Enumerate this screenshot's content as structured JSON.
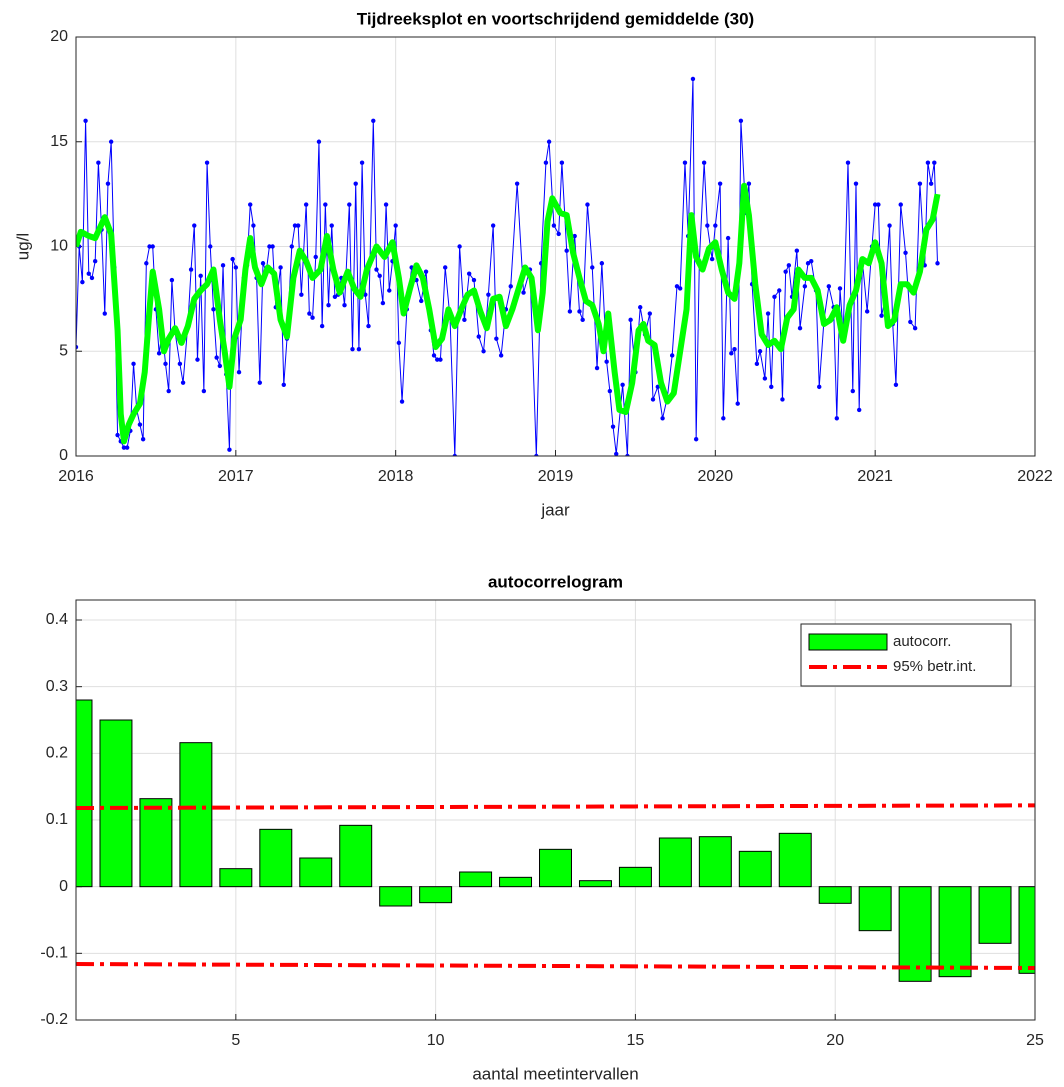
{
  "chart_data": [
    {
      "type": "line",
      "title": "Tijdreeksplot en voortschrijdend gemiddelde (30)",
      "xlabel": "jaar",
      "ylabel": "ug/l",
      "xlim": [
        2016,
        2022
      ],
      "xticks": [
        2016,
        2017,
        2018,
        2019,
        2020,
        2021,
        2022
      ],
      "ylim": [
        0,
        20
      ],
      "yticks": [
        0,
        5,
        10,
        15,
        20
      ],
      "grid": true,
      "series": [
        {
          "color": "#0000ff",
          "marker": true,
          "linewidth": 1,
          "x": [
            2016.0,
            2016.02,
            2016.04,
            2016.06,
            2016.08,
            2016.1,
            2016.12,
            2016.14,
            2016.16,
            2016.18,
            2016.2,
            2016.22,
            2016.24,
            2016.26,
            2016.28,
            2016.3,
            2016.32,
            2016.34,
            2016.36,
            2016.38,
            2016.4,
            2016.42,
            2016.44,
            2016.46,
            2016.48,
            2016.5,
            2016.52,
            2016.54,
            2016.56,
            2016.58,
            2016.6,
            2016.62,
            2016.65,
            2016.67,
            2016.7,
            2016.72,
            2016.74,
            2016.76,
            2016.78,
            2016.8,
            2016.82,
            2016.84,
            2016.86,
            2016.88,
            2016.9,
            2016.92,
            2016.94,
            2016.96,
            2016.98,
            2017.0,
            2017.02,
            2017.05,
            2017.07,
            2017.09,
            2017.11,
            2017.13,
            2017.15,
            2017.17,
            2017.19,
            2017.21,
            2017.23,
            2017.25,
            2017.28,
            2017.3,
            2017.32,
            2017.35,
            2017.37,
            2017.39,
            2017.41,
            2017.44,
            2017.46,
            2017.48,
            2017.5,
            2017.52,
            2017.54,
            2017.56,
            2017.58,
            2017.6,
            2017.62,
            2017.64,
            2017.66,
            2017.68,
            2017.71,
            2017.73,
            2017.75,
            2017.77,
            2017.79,
            2017.81,
            2017.83,
            2017.86,
            2017.88,
            2017.9,
            2017.92,
            2017.94,
            2017.96,
            2017.98,
            2018.0,
            2018.02,
            2018.04,
            2018.07,
            2018.1,
            2018.13,
            2018.16,
            2018.19,
            2018.22,
            2018.24,
            2018.26,
            2018.28,
            2018.31,
            2018.34,
            2018.37,
            2018.4,
            2018.43,
            2018.46,
            2018.49,
            2018.52,
            2018.55,
            2018.58,
            2018.61,
            2018.63,
            2018.66,
            2018.69,
            2018.72,
            2018.76,
            2018.8,
            2018.84,
            2018.88,
            2018.91,
            2018.94,
            2018.96,
            2018.99,
            2019.02,
            2019.04,
            2019.07,
            2019.09,
            2019.12,
            2019.15,
            2019.17,
            2019.2,
            2019.23,
            2019.26,
            2019.29,
            2019.32,
            2019.34,
            2019.36,
            2019.38,
            2019.42,
            2019.45,
            2019.47,
            2019.5,
            2019.53,
            2019.56,
            2019.59,
            2019.61,
            2019.64,
            2019.67,
            2019.7,
            2019.73,
            2019.76,
            2019.78,
            2019.81,
            2019.83,
            2019.86,
            2019.88,
            2019.9,
            2019.93,
            2019.95,
            2019.98,
            2020.0,
            2020.03,
            2020.05,
            2020.08,
            2020.1,
            2020.12,
            2020.14,
            2020.16,
            2020.19,
            2020.21,
            2020.23,
            2020.26,
            2020.28,
            2020.31,
            2020.33,
            2020.35,
            2020.37,
            2020.4,
            2020.42,
            2020.44,
            2020.46,
            2020.48,
            2020.51,
            2020.53,
            2020.56,
            2020.58,
            2020.6,
            2020.63,
            2020.65,
            2020.68,
            2020.71,
            2020.74,
            2020.76,
            2020.78,
            2020.8,
            2020.83,
            2020.86,
            2020.88,
            2020.9,
            2020.92,
            2020.95,
            2020.98,
            2021.0,
            2021.02,
            2021.04,
            2021.06,
            2021.09,
            2021.11,
            2021.13,
            2021.16,
            2021.19,
            2021.22,
            2021.25,
            2021.28,
            2021.31,
            2021.33,
            2021.35,
            2021.37,
            2021.39
          ],
          "values": [
            5.2,
            10,
            8.3,
            16,
            8.7,
            8.5,
            9.3,
            14,
            10.8,
            6.8,
            13,
            15,
            9,
            1,
            0.7,
            0.4,
            0.4,
            1.2,
            4.4,
            2.2,
            1.5,
            0.8,
            9.2,
            10,
            10,
            7,
            4.9,
            6,
            4.4,
            3.1,
            8.4,
            5.9,
            4.4,
            3.5,
            6.3,
            8.9,
            11,
            4.6,
            8.6,
            3.1,
            14,
            10,
            7,
            4.7,
            4.3,
            9.1,
            3.9,
            0.3,
            9.4,
            9,
            4,
            8.5,
            9.1,
            12,
            11,
            8.5,
            3.5,
            9.2,
            8.8,
            10,
            10,
            7.1,
            9,
            3.4,
            5.6,
            10,
            11,
            11,
            7.7,
            12,
            6.8,
            6.6,
            9.5,
            15,
            6.2,
            12,
            7.2,
            11,
            7.6,
            7.7,
            8.5,
            7.2,
            12,
            5.1,
            13,
            5.1,
            14,
            7.7,
            6.2,
            16,
            8.9,
            8.6,
            7.3,
            12,
            7.9,
            9.3,
            11,
            5.4,
            2.6,
            7,
            9,
            8.4,
            7.4,
            8.8,
            6,
            4.8,
            4.6,
            4.6,
            9,
            6.6,
            0,
            10,
            6.5,
            8.7,
            8.4,
            5.7,
            5,
            7.7,
            11,
            5.6,
            4.8,
            7,
            8.1,
            13,
            7.8,
            8.9,
            0,
            9.2,
            14,
            15,
            11,
            10.6,
            14,
            9.8,
            6.9,
            10.5,
            6.9,
            6.5,
            12,
            9,
            4.2,
            9.2,
            4.5,
            3.1,
            1.4,
            0.1,
            3.4,
            0,
            6.5,
            4,
            7.1,
            5.8,
            6.8,
            2.7,
            3.3,
            1.8,
            2.8,
            4.8,
            8.1,
            8,
            14,
            10.5,
            18,
            0.8,
            9.3,
            14,
            11,
            9.4,
            11,
            13,
            1.8,
            10.4,
            4.9,
            5.1,
            2.5,
            16,
            11.6,
            13,
            8.2,
            4.4,
            5,
            3.7,
            6.8,
            3.3,
            7.6,
            7.9,
            2.7,
            8.8,
            9.1,
            7.6,
            9.8,
            6.1,
            8.1,
            9.2,
            9.3,
            7.9,
            3.3,
            6.5,
            8.1,
            7.1,
            1.8,
            8,
            5.8,
            14,
            3.1,
            13,
            2.2,
            9.3,
            6.9,
            10,
            12,
            12,
            6.7,
            7.4,
            11,
            6.3,
            3.4,
            12,
            9.7,
            6.4,
            6.1,
            13,
            9.1,
            14,
            13,
            14,
            9.2
          ]
        },
        {
          "color": "#00ff00",
          "marker": false,
          "linewidth": 6,
          "x": [
            2016.0,
            2016.03,
            2016.08,
            2016.12,
            2016.18,
            2016.22,
            2016.26,
            2016.28,
            2016.3,
            2016.33,
            2016.36,
            2016.4,
            2016.43,
            2016.46,
            2016.48,
            2016.52,
            2016.55,
            2016.58,
            2016.62,
            2016.66,
            2016.7,
            2016.74,
            2016.78,
            2016.82,
            2016.86,
            2016.9,
            2016.93,
            2016.96,
            2016.99,
            2017.03,
            2017.06,
            2017.09,
            2017.12,
            2017.16,
            2017.2,
            2017.24,
            2017.28,
            2017.32,
            2017.36,
            2017.4,
            2017.44,
            2017.48,
            2017.53,
            2017.57,
            2017.61,
            2017.65,
            2017.7,
            2017.74,
            2017.78,
            2017.82,
            2017.88,
            2017.93,
            2017.98,
            2018.02,
            2018.05,
            2018.09,
            2018.13,
            2018.17,
            2018.21,
            2018.25,
            2018.29,
            2018.33,
            2018.37,
            2018.41,
            2018.45,
            2018.49,
            2018.53,
            2018.57,
            2018.61,
            2018.65,
            2018.69,
            2018.73,
            2018.77,
            2018.81,
            2018.85,
            2018.89,
            2018.92,
            2018.95,
            2018.98,
            2019.03,
            2019.07,
            2019.11,
            2019.15,
            2019.19,
            2019.23,
            2019.27,
            2019.3,
            2019.33,
            2019.37,
            2019.4,
            2019.44,
            2019.48,
            2019.52,
            2019.55,
            2019.58,
            2019.62,
            2019.66,
            2019.7,
            2019.74,
            2019.78,
            2019.82,
            2019.85,
            2019.88,
            2019.92,
            2019.96,
            2020.0,
            2020.04,
            2020.08,
            2020.12,
            2020.15,
            2020.18,
            2020.21,
            2020.25,
            2020.29,
            2020.33,
            2020.37,
            2020.41,
            2020.45,
            2020.49,
            2020.52,
            2020.56,
            2020.6,
            2020.64,
            2020.68,
            2020.72,
            2020.76,
            2020.8,
            2020.84,
            2020.88,
            2020.92,
            2020.96,
            2021.0,
            2021.04,
            2021.08,
            2021.12,
            2021.16,
            2021.2,
            2021.24,
            2021.28,
            2021.32,
            2021.36,
            2021.39
          ],
          "values": [
            10,
            10.7,
            10.5,
            10.4,
            11.4,
            10.6,
            6,
            2,
            0.7,
            1.5,
            2,
            2.5,
            4,
            7,
            8.8,
            7,
            5,
            5.6,
            6.1,
            5.4,
            6.2,
            7.5,
            7.9,
            8.2,
            8.9,
            6.5,
            5,
            3.3,
            5.6,
            6.5,
            8.9,
            10.4,
            9,
            8.2,
            9,
            8.7,
            6.5,
            5.7,
            8.5,
            9.8,
            9.3,
            8.5,
            8.9,
            10.5,
            8.9,
            7.8,
            8.8,
            8,
            7.6,
            8.9,
            10,
            9.5,
            10.2,
            8.5,
            6.8,
            8,
            9.1,
            8.5,
            7,
            5.2,
            5.6,
            7,
            6.2,
            7,
            7.7,
            7.9,
            6.9,
            6.1,
            7.5,
            7.6,
            6.2,
            7,
            8,
            9,
            8.5,
            6,
            7.8,
            11.2,
            12.3,
            11.6,
            11.5,
            9.7,
            8.5,
            7.4,
            7.2,
            6.3,
            5,
            6.8,
            4,
            2.2,
            2.1,
            3.5,
            6,
            6.3,
            5.5,
            5.3,
            3.5,
            2.6,
            3,
            5,
            7,
            11.5,
            9.5,
            8.9,
            9.9,
            10.2,
            8.9,
            7.8,
            7.5,
            9.2,
            12.9,
            11.5,
            8.2,
            5.8,
            5.3,
            5.5,
            5.1,
            6.6,
            7,
            8.9,
            8.5,
            8.5,
            7.9,
            6.3,
            6.5,
            7.1,
            5.5,
            7.2,
            7.9,
            9.4,
            9.2,
            10.2,
            9.2,
            6.2,
            6.5,
            8.2,
            8.2,
            7.8,
            8.8,
            10.8,
            11.3,
            12.5
          ]
        }
      ]
    },
    {
      "type": "bar",
      "title": "autocorrelogram",
      "xlabel": "aantal meetintervallen",
      "xlim": [
        1,
        25
      ],
      "xticks": [
        5,
        10,
        15,
        20,
        25
      ],
      "ylim": [
        -0.2,
        0.43
      ],
      "yticks": [
        -0.2,
        -0.1,
        0,
        0.1,
        0.2,
        0.3,
        0.4
      ],
      "grid": true,
      "legend": "northeast",
      "series": [
        {
          "name": "autocorr.",
          "type": "bar",
          "color": "#00ff00",
          "x": [
            1,
            2,
            3,
            4,
            5,
            6,
            7,
            8,
            9,
            10,
            11,
            12,
            13,
            14,
            15,
            16,
            17,
            18,
            19,
            20,
            21,
            22,
            23,
            24,
            25
          ],
          "values": [
            0.28,
            0.25,
            0.132,
            0.216,
            0.027,
            0.086,
            0.043,
            0.092,
            -0.029,
            -0.024,
            0.022,
            0.014,
            0.056,
            0.009,
            0.029,
            0.073,
            0.075,
            0.053,
            0.08,
            -0.025,
            -0.066,
            -0.142,
            -0.135,
            -0.085,
            -0.13
          ]
        },
        {
          "name": "95% betr.int.",
          "type": "line",
          "color": "#ff0000",
          "linewidth": 4,
          "dash": "dashdot",
          "x": [
            1,
            25
          ],
          "values": [
            0.118,
            0.122
          ],
          "lower": [
            -0.116,
            -0.122
          ]
        }
      ]
    }
  ]
}
